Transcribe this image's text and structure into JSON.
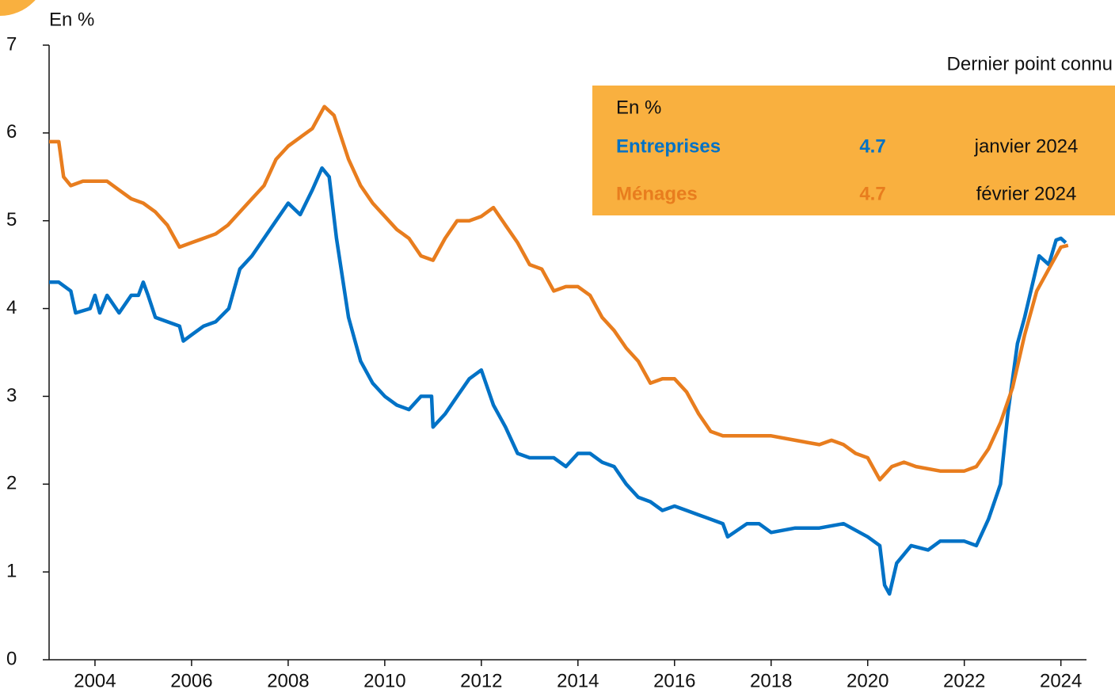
{
  "chart_data": {
    "type": "line",
    "y_label": "En %",
    "box_title": "Dernier point connu",
    "box_unit": "En %",
    "xlim": [
      2003.05,
      2024.53
    ],
    "ylim": [
      0,
      7
    ],
    "xticks": [
      2004,
      2006,
      2008,
      2010,
      2012,
      2014,
      2016,
      2018,
      2020,
      2022,
      2024
    ],
    "yticks": [
      0,
      1,
      2,
      3,
      4,
      5,
      6,
      7
    ],
    "series": [
      {
        "name": "Entreprises",
        "color": "#0072c6",
        "last_value": 4.7,
        "last_date": "janvier 2024",
        "x": [
          2003.05,
          2003.25,
          2003.5,
          2003.6,
          2003.9,
          2004.0,
          2004.1,
          2004.25,
          2004.5,
          2004.75,
          2004.9,
          2005.0,
          2005.1,
          2005.25,
          2005.5,
          2005.75,
          2005.83,
          2006.0,
          2006.25,
          2006.5,
          2006.77,
          2007.0,
          2007.25,
          2007.5,
          2007.75,
          2008.0,
          2008.25,
          2008.5,
          2008.7,
          2008.85,
          2009.0,
          2009.25,
          2009.5,
          2009.75,
          2010.0,
          2010.25,
          2010.5,
          2010.75,
          2010.97,
          2011.0,
          2011.25,
          2011.5,
          2011.75,
          2012.0,
          2012.25,
          2012.5,
          2012.75,
          2013.0,
          2013.5,
          2013.75,
          2014.0,
          2014.25,
          2014.5,
          2014.75,
          2015.0,
          2015.25,
          2015.5,
          2015.75,
          2016.0,
          2016.25,
          2016.5,
          2016.75,
          2017.0,
          2017.1,
          2017.5,
          2017.75,
          2018.0,
          2018.5,
          2019.0,
          2019.5,
          2020.0,
          2020.25,
          2020.35,
          2020.45,
          2020.6,
          2020.9,
          2021.25,
          2021.5,
          2021.75,
          2022.0,
          2022.25,
          2022.5,
          2022.75,
          2022.9,
          2023.1,
          2023.25,
          2023.55,
          2023.75,
          2023.9,
          2024.0,
          2024.1
        ],
        "values": [
          4.3,
          4.3,
          4.2,
          3.95,
          4.0,
          4.15,
          3.95,
          4.15,
          3.95,
          4.15,
          4.15,
          4.3,
          4.15,
          3.9,
          3.85,
          3.8,
          3.63,
          3.7,
          3.8,
          3.85,
          4.0,
          4.45,
          4.6,
          4.8,
          5.0,
          5.2,
          5.07,
          5.35,
          5.6,
          5.5,
          4.8,
          3.9,
          3.4,
          3.15,
          3.0,
          2.9,
          2.85,
          3.0,
          3.0,
          2.65,
          2.8,
          3.0,
          3.2,
          3.3,
          2.9,
          2.65,
          2.35,
          2.3,
          2.3,
          2.2,
          2.35,
          2.35,
          2.25,
          2.2,
          2.0,
          1.85,
          1.8,
          1.7,
          1.75,
          1.7,
          1.65,
          1.6,
          1.55,
          1.4,
          1.55,
          1.55,
          1.45,
          1.5,
          1.5,
          1.55,
          1.4,
          1.3,
          0.85,
          0.75,
          1.1,
          1.3,
          1.25,
          1.35,
          1.35,
          1.35,
          1.3,
          1.6,
          2.0,
          2.8,
          3.6,
          3.9,
          4.6,
          4.5,
          4.78,
          4.8,
          4.75
        ]
      },
      {
        "name": "Ménages",
        "color": "#e87d1e",
        "last_value": 4.7,
        "last_date": "février 2024",
        "x": [
          2003.05,
          2003.25,
          2003.35,
          2003.5,
          2003.75,
          2004.0,
          2004.25,
          2004.5,
          2004.75,
          2005.0,
          2005.25,
          2005.5,
          2005.75,
          2006.0,
          2006.25,
          2006.5,
          2006.75,
          2007.0,
          2007.25,
          2007.5,
          2007.75,
          2008.0,
          2008.25,
          2008.5,
          2008.75,
          2008.95,
          2009.25,
          2009.5,
          2009.75,
          2010.0,
          2010.25,
          2010.5,
          2010.75,
          2011.0,
          2011.25,
          2011.5,
          2011.75,
          2012.0,
          2012.25,
          2012.5,
          2012.75,
          2013.0,
          2013.25,
          2013.5,
          2013.75,
          2014.0,
          2014.25,
          2014.5,
          2014.75,
          2015.0,
          2015.25,
          2015.5,
          2015.75,
          2016.0,
          2016.25,
          2016.5,
          2016.75,
          2017.0,
          2017.5,
          2018.0,
          2018.5,
          2019.0,
          2019.25,
          2019.5,
          2019.75,
          2020.0,
          2020.25,
          2020.5,
          2020.75,
          2021.0,
          2021.5,
          2022.0,
          2022.25,
          2022.5,
          2022.75,
          2023.0,
          2023.25,
          2023.5,
          2023.75,
          2024.0,
          2024.15
        ],
        "values": [
          5.9,
          5.9,
          5.5,
          5.4,
          5.45,
          5.45,
          5.45,
          5.35,
          5.25,
          5.2,
          5.1,
          4.95,
          4.7,
          4.75,
          4.8,
          4.85,
          4.95,
          5.1,
          5.25,
          5.4,
          5.7,
          5.85,
          5.95,
          6.05,
          6.3,
          6.2,
          5.7,
          5.4,
          5.2,
          5.05,
          4.9,
          4.8,
          4.6,
          4.55,
          4.8,
          5.0,
          5.0,
          5.05,
          5.15,
          4.95,
          4.75,
          4.5,
          4.45,
          4.2,
          4.25,
          4.25,
          4.15,
          3.9,
          3.75,
          3.55,
          3.4,
          3.15,
          3.2,
          3.2,
          3.05,
          2.8,
          2.6,
          2.55,
          2.55,
          2.55,
          2.5,
          2.45,
          2.5,
          2.45,
          2.35,
          2.3,
          2.05,
          2.2,
          2.25,
          2.2,
          2.15,
          2.15,
          2.2,
          2.4,
          2.7,
          3.1,
          3.7,
          4.2,
          4.45,
          4.7,
          4.72
        ]
      }
    ]
  }
}
